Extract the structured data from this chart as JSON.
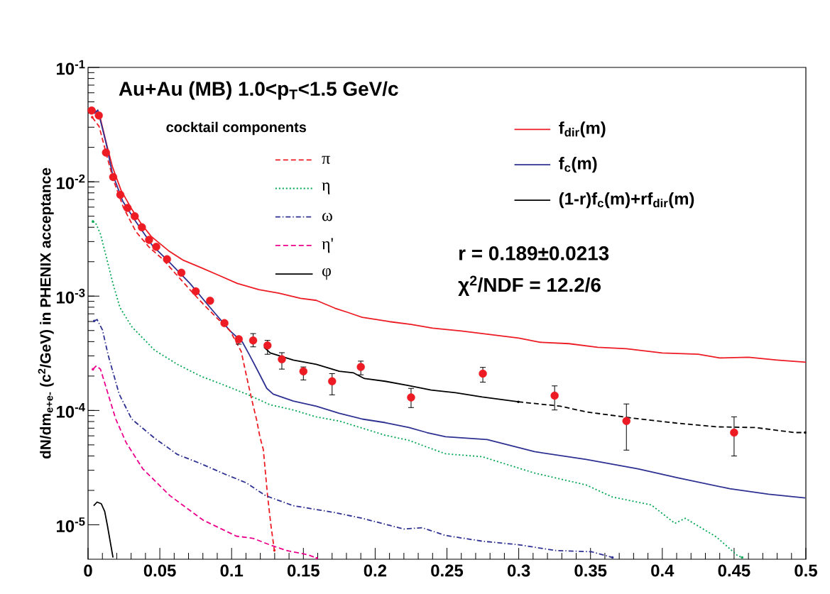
{
  "chart_data": {
    "type": "line",
    "title": "Au+Au (MB) 1.0<p$_{T}$<1.5 GeV/c",
    "ylabel": "dN/dm$_{e+e-}$ (c$^{2}$/GeV) in PHENIX acceptance",
    "legend_title": "cocktail components",
    "annotations": [
      "r = 0.189±0.0213",
      "χ$^{2}$/NDF = 12.2/6"
    ],
    "xlim": [
      0,
      0.5
    ],
    "ylim": [
      5e-06,
      0.1
    ],
    "log": "y",
    "grid": false,
    "legend": "top right",
    "xticks": [
      0,
      0.05,
      0.1,
      0.15,
      0.2,
      0.25,
      0.3,
      0.35,
      0.4,
      0.45,
      0.5
    ],
    "yticks": [
      {
        "value": 1e-05,
        "label": "10$^{-5}$"
      },
      {
        "value": 0.0001,
        "label": "10$^{-4}$"
      },
      {
        "value": 0.001,
        "label": "10$^{-3}$"
      },
      {
        "value": 0.01,
        "label": "10$^{-2}$"
      },
      {
        "value": 0.1,
        "label": "10$^{-1}$"
      }
    ],
    "series": [
      {
        "name": "f$_{dir}$(m)",
        "color": "#ed1c24",
        "line_style": "solid",
        "x": [
          0.003,
          0.008,
          0.0125,
          0.017,
          0.023,
          0.03,
          0.037,
          0.044,
          0.056,
          0.066,
          0.079,
          0.09,
          0.104,
          0.119,
          0.133,
          0.148,
          0.159,
          0.172,
          0.181,
          0.191,
          0.21,
          0.225,
          0.24,
          0.26,
          0.28,
          0.3,
          0.315,
          0.335,
          0.355,
          0.375,
          0.4,
          0.425,
          0.44,
          0.46,
          0.48,
          0.5
        ],
        "values": [
          0.0443,
          0.0384,
          0.0223,
          0.0135,
          0.00842,
          0.00589,
          0.0043,
          0.00333,
          0.0025,
          0.00207,
          0.00177,
          0.00154,
          0.00129,
          0.00114,
          0.00106,
          0.000957,
          0.000918,
          0.000784,
          0.00072,
          0.000652,
          0.000598,
          0.000565,
          0.000525,
          0.000496,
          0.000462,
          0.00043,
          0.000395,
          0.000384,
          0.000357,
          0.000347,
          0.000318,
          0.00031,
          0.000288,
          0.000292,
          0.000276,
          0.000264
        ]
      },
      {
        "name": "f$_{c}$(m)",
        "color": "#2e3192",
        "line_style": "solid",
        "x": [
          0.0043,
          0.0068,
          0.0125,
          0.0169,
          0.0241,
          0.0333,
          0.0449,
          0.057,
          0.071,
          0.085,
          0.099,
          0.1076,
          0.1125,
          0.119,
          0.1245,
          0.129,
          0.143,
          0.159,
          0.175,
          0.191,
          0.207,
          0.2235,
          0.236,
          0.249,
          0.278,
          0.311,
          0.347,
          0.383,
          0.411,
          0.447,
          0.474,
          0.4995
        ],
        "values": [
          0.0395,
          0.0424,
          0.022,
          0.0119,
          0.00679,
          0.00449,
          0.00276,
          0.00196,
          0.00129,
          0.000796,
          0.000496,
          0.000395,
          0.000305,
          0.000213,
          0.000156,
          0.000139,
          0.000121,
          0.000109,
          9.44e-05,
          8.41e-05,
          7.83e-05,
          7.09e-05,
          6.41e-05,
          5.89e-05,
          5.56e-05,
          4.36e-05,
          3.73e-05,
          3.09e-05,
          2.57e-05,
          2.07e-05,
          1.85e-05,
          1.72e-05
        ]
      },
      {
        "name": "(1-r)f$_{c}$(m)+rf$_{dir}$(m)",
        "color": "#000000",
        "line_style": "solid",
        "x": [
          0.1226,
          0.127,
          0.143,
          0.159,
          0.175,
          0.185,
          0.1926,
          0.207,
          0.2235,
          0.239,
          0.256,
          0.2746,
          0.2997
        ],
        "values": [
          0.000357,
          0.000318,
          0.000276,
          0.000253,
          0.00022,
          0.000213,
          0.00019,
          0.00018,
          0.000165,
          0.000151,
          0.000143,
          0.000131,
          0.000119
        ]
      },
      {
        "color": "#000000",
        "line_style": "dashed",
        "x": [
          0.2997,
          0.329,
          0.347,
          0.38,
          0.411,
          0.438,
          0.465,
          0.492,
          0.4995
        ],
        "values": [
          0.000119,
          0.000109,
          9.72e-05,
          8.55e-05,
          7.73e-05,
          7.19e-05,
          7.09e-05,
          6.41e-05,
          6.41e-05
        ]
      },
      {
        "name": "π",
        "color": "#ed1c24",
        "line_style": "dashed",
        "x": [
          0.0029,
          0.0077,
          0.0125,
          0.0174,
          0.0246,
          0.0333,
          0.0425,
          0.0521,
          0.0608,
          0.0709,
          0.0801,
          0.0893,
          0.099,
          0.1067,
          0.1115,
          0.1149,
          0.1173,
          0.1197,
          0.1221,
          0.125,
          0.1274,
          0.1298
        ],
        "values": [
          0.0367,
          0.0305,
          0.018,
          0.0106,
          0.00597,
          0.00367,
          0.00268,
          0.0021,
          0.00158,
          0.00114,
          0.000855,
          0.000652,
          0.000496,
          0.000328,
          0.000172,
          0.000112,
          8.41e-05,
          5.89e-05,
          4.55e-05,
          1.82e-05,
          9.86e-06,
          5.97e-06
        ]
      },
      {
        "name": "η",
        "color": "#00a651",
        "line_style": "dotted",
        "x": [
          0.0034,
          0.0053,
          0.0087,
          0.0125,
          0.0174,
          0.0222,
          0.0304,
          0.0463,
          0.0623,
          0.0787,
          0.0946,
          0.1105,
          0.1269,
          0.1429,
          0.1588,
          0.1752,
          0.1911,
          0.207,
          0.2235,
          0.2394,
          0.249,
          0.2746,
          0.3108,
          0.347,
          0.3653,
          0.3924,
          0.4088,
          0.416,
          0.4377,
          0.4522,
          0.4556
        ],
        "values": [
          0.00449,
          0.00436,
          0.00347,
          0.00226,
          0.00128,
          0.000796,
          0.000541,
          0.000337,
          0.000253,
          0.000199,
          0.000167,
          0.000139,
          0.000112,
          0.000101,
          8.79e-05,
          8.07e-05,
          7e-05,
          6.07e-05,
          5.48e-05,
          4.62e-05,
          4.18e-05,
          3.94e-05,
          2.84e-05,
          2.23e-05,
          1.75e-05,
          1.49e-05,
          1.03e-05,
          1.14e-05,
          7.83e-06,
          5.41e-06,
          5.18e-06
        ]
      },
      {
        "name": "ω",
        "color": "#2e3192",
        "line_style": "dashdot",
        "x": [
          0.0043,
          0.0063,
          0.0101,
          0.014,
          0.0217,
          0.0304,
          0.0463,
          0.0623,
          0.0787,
          0.0946,
          0.1105,
          0.1236,
          0.1429,
          0.1718,
          0.1911,
          0.2104,
          0.2201,
          0.2326,
          0.249,
          0.2746,
          0.2997,
          0.3253,
          0.3509,
          0.3653
        ],
        "values": [
          0.000607,
          0.000624,
          0.000504,
          0.000305,
          0.000139,
          8.41e-05,
          5.73e-05,
          4.12e-05,
          3.42e-05,
          2.8e-05,
          2.32e-05,
          1.8e-05,
          1.47e-05,
          1.28e-05,
          1.14e-05,
          9.86e-06,
          9.18e-06,
          9.44e-06,
          8.07e-06,
          7.19e-06,
          6.7e-06,
          5.97e-06,
          5.81e-06,
          5.18e-06
        ]
      },
      {
        "name": "η'",
        "color": "#ec008c",
        "line_style": "dashed",
        "x": [
          0.0034,
          0.0058,
          0.0087,
          0.0125,
          0.0193,
          0.0265,
          0.0381,
          0.057,
          0.0801,
          0.1033,
          0.1149,
          0.1264,
          0.138,
          0.153,
          0.1593
        ],
        "values": [
          0.000229,
          0.000246,
          0.000229,
          0.00016,
          8.41e-05,
          5.25e-05,
          3.09e-05,
          1.8e-05,
          1.1e-05,
          7.96e-06,
          7.62e-06,
          6.7e-06,
          5.97e-06,
          5.48e-06,
          5.11e-06
        ]
      },
      {
        "name": "φ",
        "color": "#000000",
        "line_style": "solid",
        "x": [
          0.0039,
          0.0063,
          0.0092,
          0.0116,
          0.0135,
          0.0154,
          0.0174
        ],
        "values": [
          1.47e-05,
          1.58e-05,
          1.53e-05,
          1.31e-05,
          9.86e-06,
          7.19e-06,
          5.18e-06
        ]
      },
      {
        "type": "scatter",
        "marker": "circle",
        "color": "#ed1c24",
        "x": [
          0.0025,
          0.0075,
          0.0125,
          0.0175,
          0.0225,
          0.0275,
          0.0325,
          0.0375,
          0.0425,
          0.0475,
          0.055,
          0.065,
          0.075,
          0.085,
          0.095,
          0.105,
          0.115,
          0.125,
          0.135,
          0.15,
          0.17,
          0.19,
          0.225,
          0.275,
          0.325,
          0.375,
          0.45
        ],
        "values": [
          0.042,
          0.038,
          0.018,
          0.011,
          0.0077,
          0.0059,
          0.005,
          0.004,
          0.0031,
          0.0027,
          0.0021,
          0.0016,
          0.0011,
          0.00091,
          0.00058,
          0.00042,
          0.00041,
          0.00037,
          0.00028,
          0.00022,
          0.00018,
          0.00024,
          0.00013,
          0.00021,
          0.000135,
          8.1e-05,
          6.4e-05
        ],
        "errors": [
          null,
          null,
          null,
          null,
          null,
          null,
          null,
          null,
          null,
          null,
          null,
          null,
          null,
          null,
          null,
          [
            0.00038,
            0.00044
          ],
          [
            0.00036,
            0.00047
          ],
          [
            0.00031,
            0.00041
          ],
          [
            0.00023,
            0.00032
          ],
          [
            0.000185,
            0.00024
          ],
          [
            0.000137,
            0.00021
          ],
          [
            0.000205,
            0.00027
          ],
          [
            0.000106,
            0.000156
          ],
          [
            0.000177,
            0.000238
          ],
          [
            0.000101,
            0.000164
          ],
          [
            4.5e-05,
            0.000114
          ],
          [
            4e-05,
            8.8e-05
          ]
        ]
      }
    ]
  }
}
